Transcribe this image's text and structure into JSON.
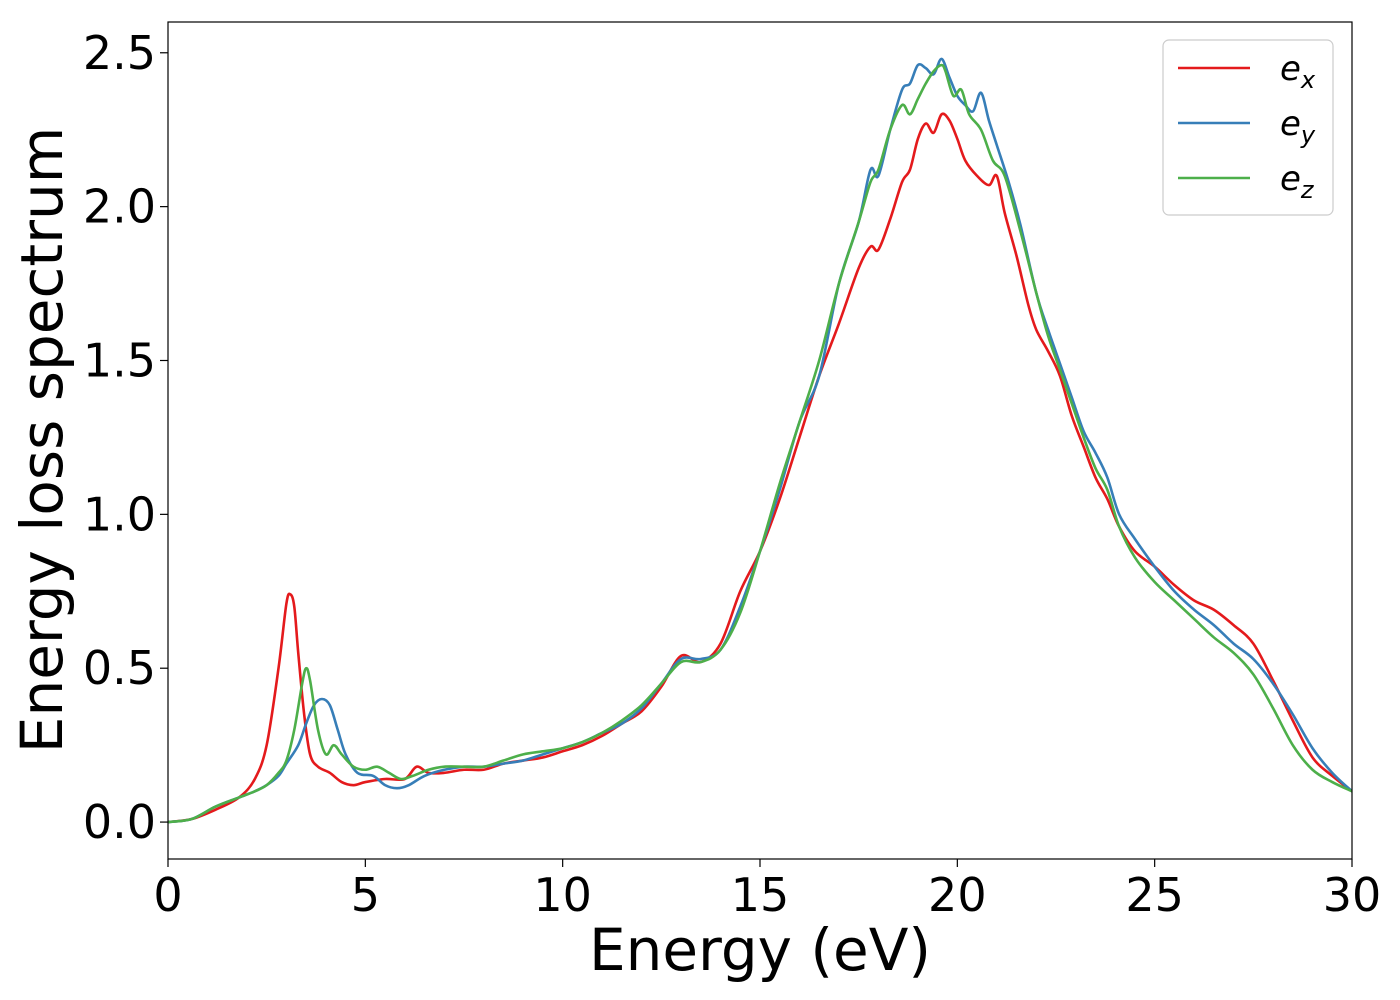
{
  "chart_data": {
    "type": "line",
    "title": "",
    "xlabel": "Energy (eV)",
    "ylabel": "Energy loss spectrum",
    "xlim": [
      0,
      30
    ],
    "ylim": [
      -0.12,
      2.6
    ],
    "xticks": [
      0,
      5,
      10,
      15,
      20,
      25,
      30
    ],
    "xtick_labels": [
      "0",
      "5",
      "10",
      "15",
      "20",
      "25",
      "30"
    ],
    "yticks": [
      0.0,
      0.5,
      1.0,
      1.5,
      2.0,
      2.5
    ],
    "ytick_labels": [
      "0.0",
      "0.5",
      "1.0",
      "1.5",
      "2.0",
      "2.5"
    ],
    "grid": false,
    "legend_position": "top-right",
    "series": [
      {
        "name": "e_x",
        "label_main": "e",
        "label_sub": "x",
        "color": "#e41a1c",
        "x": [
          0,
          0.6,
          1.2,
          1.8,
          2.2,
          2.5,
          2.8,
          3.0,
          3.1,
          3.2,
          3.3,
          3.45,
          3.6,
          3.8,
          4.1,
          4.4,
          4.7,
          5.0,
          5.5,
          6.0,
          6.3,
          6.6,
          7.0,
          7.5,
          8.0,
          8.5,
          9.0,
          9.5,
          10.0,
          10.5,
          11.0,
          11.5,
          12.0,
          12.5,
          13.0,
          13.5,
          14.0,
          14.5,
          15.0,
          15.5,
          16.0,
          16.5,
          17.0,
          17.5,
          17.8,
          18.0,
          18.3,
          18.6,
          18.8,
          19.0,
          19.2,
          19.4,
          19.6,
          19.8,
          20.0,
          20.2,
          20.5,
          20.8,
          21.0,
          21.2,
          21.5,
          21.8,
          22.0,
          22.3,
          22.6,
          22.9,
          23.2,
          23.5,
          23.8,
          24.1,
          24.5,
          25.0,
          25.5,
          26.0,
          26.5,
          27.0,
          27.5,
          28.0,
          28.5,
          29.0,
          29.5,
          30.0
        ],
        "y": [
          0.0,
          0.01,
          0.04,
          0.08,
          0.14,
          0.25,
          0.5,
          0.71,
          0.74,
          0.7,
          0.55,
          0.35,
          0.22,
          0.18,
          0.16,
          0.13,
          0.12,
          0.13,
          0.14,
          0.14,
          0.18,
          0.16,
          0.16,
          0.17,
          0.17,
          0.19,
          0.2,
          0.21,
          0.23,
          0.25,
          0.28,
          0.32,
          0.36,
          0.44,
          0.54,
          0.52,
          0.58,
          0.75,
          0.88,
          1.05,
          1.25,
          1.45,
          1.62,
          1.8,
          1.87,
          1.86,
          1.96,
          2.08,
          2.12,
          2.22,
          2.27,
          2.24,
          2.3,
          2.28,
          2.22,
          2.15,
          2.1,
          2.07,
          2.1,
          1.98,
          1.84,
          1.68,
          1.6,
          1.53,
          1.45,
          1.32,
          1.22,
          1.12,
          1.05,
          0.96,
          0.88,
          0.83,
          0.77,
          0.72,
          0.69,
          0.64,
          0.58,
          0.46,
          0.33,
          0.21,
          0.15,
          0.1
        ]
      },
      {
        "name": "e_y",
        "label_main": "e",
        "label_sub": "y",
        "color": "#377eb8",
        "x": [
          0,
          0.6,
          1.2,
          1.8,
          2.2,
          2.5,
          2.8,
          3.0,
          3.3,
          3.5,
          3.7,
          3.9,
          4.1,
          4.3,
          4.5,
          4.8,
          5.2,
          5.5,
          5.8,
          6.1,
          6.5,
          7.0,
          7.5,
          8.0,
          8.5,
          9.0,
          9.5,
          10.0,
          10.5,
          11.0,
          11.5,
          12.0,
          12.5,
          13.0,
          13.5,
          14.0,
          14.5,
          15.0,
          15.5,
          16.0,
          16.5,
          17.0,
          17.5,
          17.8,
          18.0,
          18.3,
          18.6,
          18.8,
          19.0,
          19.2,
          19.4,
          19.6,
          19.8,
          20.0,
          20.2,
          20.4,
          20.6,
          20.8,
          21.0,
          21.3,
          21.6,
          22.0,
          22.3,
          22.6,
          22.9,
          23.2,
          23.5,
          23.8,
          24.1,
          24.5,
          25.0,
          25.5,
          26.0,
          26.5,
          27.0,
          27.5,
          28.0,
          28.5,
          29.0,
          29.5,
          30.0
        ],
        "y": [
          0.0,
          0.01,
          0.05,
          0.08,
          0.1,
          0.12,
          0.15,
          0.19,
          0.25,
          0.32,
          0.38,
          0.4,
          0.38,
          0.3,
          0.22,
          0.16,
          0.15,
          0.12,
          0.11,
          0.12,
          0.15,
          0.17,
          0.18,
          0.18,
          0.19,
          0.2,
          0.22,
          0.24,
          0.26,
          0.29,
          0.32,
          0.37,
          0.45,
          0.53,
          0.53,
          0.56,
          0.7,
          0.88,
          1.08,
          1.3,
          1.45,
          1.75,
          1.95,
          2.12,
          2.1,
          2.25,
          2.38,
          2.4,
          2.46,
          2.45,
          2.43,
          2.48,
          2.42,
          2.36,
          2.33,
          2.31,
          2.37,
          2.28,
          2.2,
          2.08,
          1.94,
          1.72,
          1.6,
          1.49,
          1.38,
          1.27,
          1.2,
          1.12,
          1.0,
          0.92,
          0.83,
          0.75,
          0.69,
          0.64,
          0.58,
          0.53,
          0.45,
          0.35,
          0.24,
          0.16,
          0.1
        ]
      },
      {
        "name": "e_z",
        "label_main": "e",
        "label_sub": "z",
        "color": "#4daf4a",
        "x": [
          0,
          0.6,
          1.2,
          1.8,
          2.2,
          2.5,
          2.8,
          3.0,
          3.2,
          3.4,
          3.5,
          3.6,
          3.8,
          4.0,
          4.2,
          4.4,
          4.7,
          5.0,
          5.3,
          5.6,
          5.9,
          6.2,
          6.6,
          7.0,
          7.5,
          8.0,
          8.5,
          9.0,
          9.5,
          10.0,
          10.5,
          11.0,
          11.5,
          12.0,
          12.5,
          13.0,
          13.5,
          14.0,
          14.5,
          15.0,
          15.5,
          16.0,
          16.5,
          17.0,
          17.5,
          17.8,
          18.0,
          18.3,
          18.6,
          18.8,
          19.0,
          19.2,
          19.4,
          19.6,
          19.7,
          19.9,
          20.1,
          20.3,
          20.6,
          20.9,
          21.2,
          21.6,
          22.0,
          22.3,
          22.6,
          22.9,
          23.2,
          23.5,
          23.8,
          24.1,
          24.5,
          25.0,
          25.5,
          26.0,
          26.5,
          27.0,
          27.5,
          28.0,
          28.5,
          29.0,
          29.5,
          30.0
        ],
        "y": [
          0.0,
          0.01,
          0.05,
          0.08,
          0.1,
          0.12,
          0.16,
          0.2,
          0.3,
          0.45,
          0.5,
          0.46,
          0.3,
          0.22,
          0.25,
          0.22,
          0.18,
          0.17,
          0.18,
          0.16,
          0.14,
          0.15,
          0.17,
          0.18,
          0.18,
          0.18,
          0.2,
          0.22,
          0.23,
          0.24,
          0.26,
          0.29,
          0.33,
          0.38,
          0.45,
          0.52,
          0.52,
          0.56,
          0.68,
          0.88,
          1.1,
          1.3,
          1.5,
          1.75,
          1.95,
          2.08,
          2.12,
          2.25,
          2.33,
          2.3,
          2.35,
          2.4,
          2.44,
          2.46,
          2.44,
          2.36,
          2.38,
          2.3,
          2.25,
          2.15,
          2.1,
          1.92,
          1.72,
          1.58,
          1.47,
          1.36,
          1.25,
          1.15,
          1.08,
          0.96,
          0.86,
          0.78,
          0.72,
          0.66,
          0.6,
          0.55,
          0.48,
          0.37,
          0.25,
          0.17,
          0.13,
          0.1
        ]
      }
    ]
  }
}
